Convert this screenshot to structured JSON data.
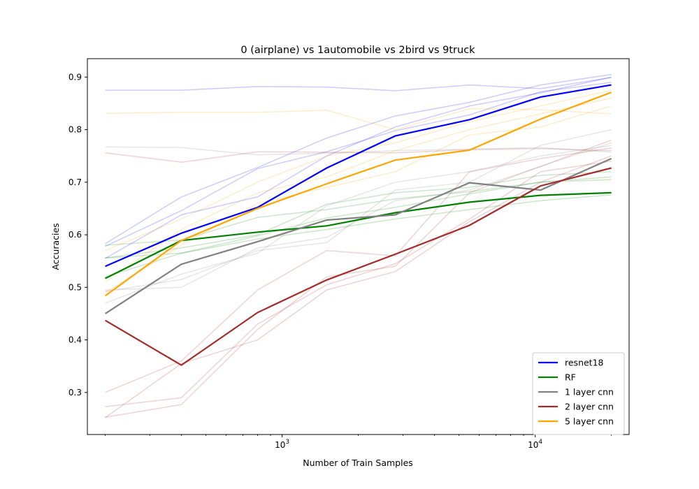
{
  "chart_data": {
    "type": "line",
    "title": "0 (airplane)  vs 1automobile vs 2bird vs 9truck",
    "xlabel": "Number of Train Samples",
    "ylabel": "Accuracies",
    "xscale": "log",
    "xlim": [
      170,
      23500
    ],
    "ylim": [
      0.22,
      0.935
    ],
    "xticks": [
      {
        "value": 1000,
        "label": "10^3"
      },
      {
        "value": 10000,
        "label": "10^4"
      }
    ],
    "yticks": [
      0.3,
      0.4,
      0.5,
      0.6,
      0.7,
      0.8,
      0.9
    ],
    "grid": false,
    "legend_position": "lower right",
    "x": [
      200,
      400,
      800,
      1500,
      2800,
      5500,
      10500,
      20000
    ],
    "series": [
      {
        "name": "resnet18",
        "color": "#0000ff",
        "values": [
          0.54,
          0.603,
          0.652,
          0.727,
          0.788,
          0.819,
          0.862,
          0.885
        ],
        "runs": [
          [
            0.875,
            0.875,
            0.882,
            0.881,
            0.874,
            0.885,
            0.878,
            0.899
          ],
          [
            0.583,
            0.672,
            0.728,
            0.784,
            0.826,
            0.852,
            0.885,
            0.905
          ],
          [
            0.555,
            0.638,
            0.672,
            0.75,
            0.805,
            0.845,
            0.87,
            0.9
          ],
          [
            0.578,
            0.646,
            0.726,
            0.758,
            0.798,
            0.828,
            0.872,
            0.89
          ]
        ]
      },
      {
        "name": "RF",
        "color": "#008000",
        "values": [
          0.517,
          0.589,
          0.605,
          0.617,
          0.642,
          0.662,
          0.675,
          0.68
        ],
        "runs": [
          [
            0.58,
            0.59,
            0.633,
            0.648,
            0.668,
            0.682,
            0.7,
            0.71
          ],
          [
            0.556,
            0.575,
            0.6,
            0.658,
            0.68,
            0.69,
            0.713,
            0.72
          ],
          [
            0.52,
            0.565,
            0.598,
            0.632,
            0.652,
            0.678,
            0.7,
            0.705
          ],
          [
            0.556,
            0.565,
            0.592,
            0.61,
            0.63,
            0.648,
            0.665,
            0.676
          ]
        ]
      },
      {
        "name": "1 layer cnn",
        "color": "#808080",
        "values": [
          0.45,
          0.544,
          0.587,
          0.628,
          0.638,
          0.699,
          0.685,
          0.745
        ],
        "runs": [
          [
            0.767,
            0.766,
            0.752,
            0.755,
            0.76,
            0.763,
            0.766,
            0.757
          ],
          [
            0.492,
            0.515,
            0.57,
            0.585,
            0.685,
            0.7,
            0.77,
            0.8
          ],
          [
            0.47,
            0.525,
            0.565,
            0.655,
            0.7,
            0.72,
            0.75,
            0.77
          ],
          [
            0.495,
            0.5,
            0.575,
            0.595,
            0.665,
            0.685,
            0.73,
            0.775
          ]
        ]
      },
      {
        "name": "2 layer cnn",
        "color": "#a52a2a",
        "values": [
          0.437,
          0.352,
          0.452,
          0.514,
          0.563,
          0.618,
          0.693,
          0.727
        ],
        "runs": [
          [
            0.756,
            0.738,
            0.758,
            0.757,
            0.756,
            0.762,
            0.764,
            0.76
          ],
          [
            0.3,
            0.36,
            0.495,
            0.57,
            0.56,
            0.72,
            0.745,
            0.765
          ],
          [
            0.253,
            0.277,
            0.42,
            0.52,
            0.54,
            0.68,
            0.73,
            0.78
          ],
          [
            0.252,
            0.355,
            0.4,
            0.495,
            0.53,
            0.625,
            0.7,
            0.75
          ],
          [
            0.273,
            0.29,
            0.43,
            0.505,
            0.545,
            0.63,
            0.72,
            0.74
          ]
        ]
      },
      {
        "name": "5 layer cnn",
        "color": "#ffa500",
        "values": [
          0.484,
          0.589,
          0.65,
          0.697,
          0.742,
          0.761,
          0.82,
          0.871
        ],
        "runs": [
          [
            0.831,
            0.833,
            0.833,
            0.837,
            0.8,
            0.84,
            0.838,
            0.83
          ],
          [
            0.57,
            0.63,
            0.7,
            0.75,
            0.775,
            0.815,
            0.845,
            0.875
          ],
          [
            0.51,
            0.61,
            0.68,
            0.71,
            0.76,
            0.8,
            0.83,
            0.86
          ],
          [
            0.49,
            0.58,
            0.66,
            0.69,
            0.72,
            0.79,
            0.805,
            0.845
          ]
        ]
      }
    ]
  }
}
